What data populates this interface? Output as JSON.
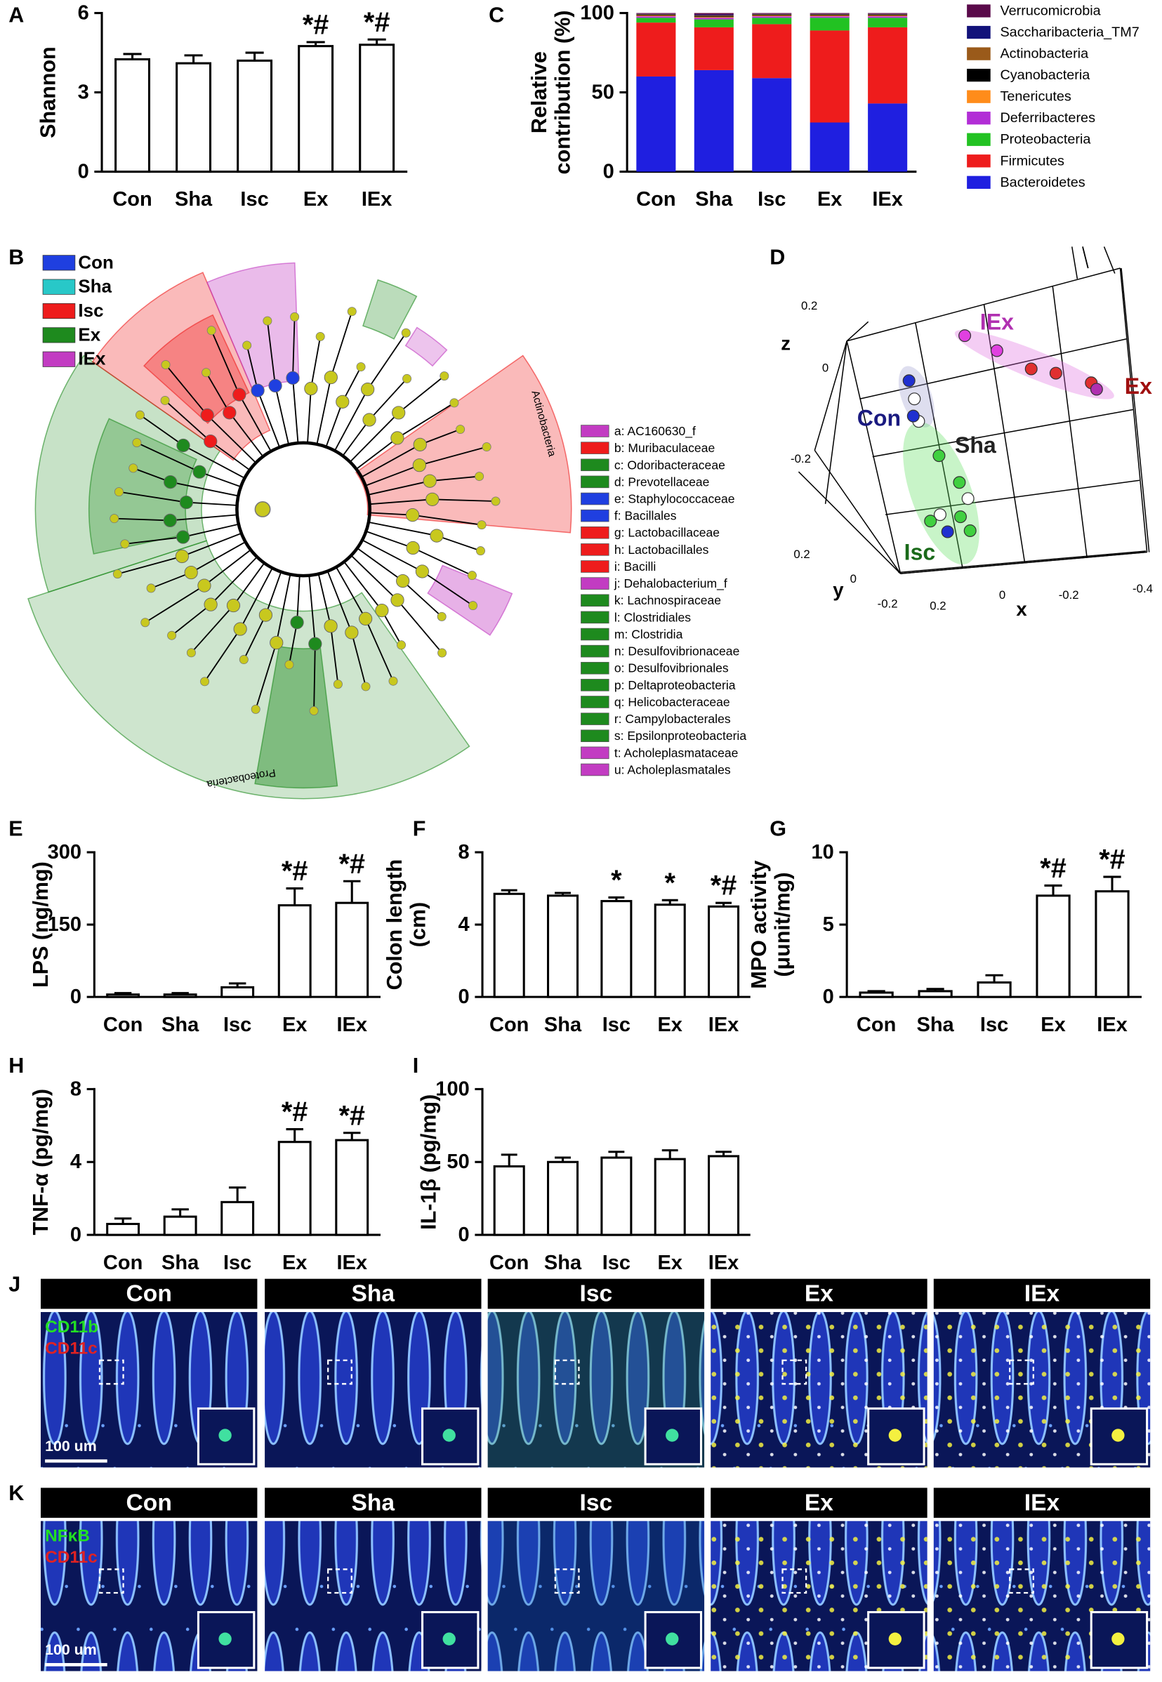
{
  "chart_data": [
    {
      "panel": "A",
      "type": "bar",
      "ylabel": [
        "Shannon"
      ],
      "categories": [
        "Con",
        "Sha",
        "Isc",
        "Ex",
        "IEx"
      ],
      "values": [
        4.25,
        4.1,
        4.2,
        4.75,
        4.8
      ],
      "errors": [
        0.2,
        0.3,
        0.3,
        0.15,
        0.2
      ],
      "ylim": [
        0,
        6
      ],
      "yticks": [
        0,
        3,
        6
      ],
      "color": "#ffffff",
      "annotations": [
        {
          "index": 3,
          "text": "*#"
        },
        {
          "index": 4,
          "text": "*#"
        }
      ]
    },
    {
      "panel": "C",
      "type": "stacked_bar",
      "ylabel": [
        "Relative",
        "contribution (%)"
      ],
      "categories": [
        "Con",
        "Sha",
        "Isc",
        "Ex",
        "IEx"
      ],
      "ylim": [
        0,
        100
      ],
      "yticks": [
        0,
        50,
        100
      ],
      "series": [
        {
          "name": "Bacteroidetes",
          "color": "#1f1fe0",
          "values": [
            60,
            64,
            59,
            31,
            43
          ]
        },
        {
          "name": "Firmicutes",
          "color": "#ee1c1c",
          "values": [
            34,
            27,
            34,
            58,
            48
          ]
        },
        {
          "name": "Proteobacteria",
          "color": "#22c222",
          "values": [
            3,
            5,
            4,
            8,
            6
          ]
        },
        {
          "name": "Deferribacteres",
          "color": "#b22ed6",
          "values": [
            1,
            1,
            1,
            1,
            1
          ]
        },
        {
          "name": "Tenericutes",
          "color": "#ff8c1a",
          "values": [
            0.5,
            0.5,
            0.5,
            0.5,
            0.5
          ]
        },
        {
          "name": "Cyanobacteria",
          "color": "#000000",
          "values": [
            0.5,
            0.5,
            0.5,
            0.5,
            0.5
          ]
        },
        {
          "name": "Actinobacteria",
          "color": "#9a5a1a",
          "values": [
            0.3,
            0.5,
            0.3,
            0.3,
            0.3
          ]
        },
        {
          "name": "Saccharibacteria_TM7",
          "color": "#12127a",
          "values": [
            0.2,
            0.5,
            0.2,
            0.2,
            0.2
          ]
        },
        {
          "name": "Verrucomicrobia",
          "color": "#5a0a4a",
          "values": [
            0.5,
            1,
            0.5,
            0.5,
            0.5
          ]
        }
      ]
    },
    {
      "panel": "E",
      "type": "bar",
      "ylabel": [
        "LPS (ng/mg)"
      ],
      "categories": [
        "Con",
        "Sha",
        "Isc",
        "Ex",
        "IEx"
      ],
      "values": [
        5,
        5,
        20,
        190,
        195
      ],
      "errors": [
        3,
        3,
        8,
        35,
        45
      ],
      "ylim": [
        0,
        300
      ],
      "yticks": [
        0,
        150,
        300
      ],
      "color": "#ffffff",
      "annotations": [
        {
          "index": 3,
          "text": "*#"
        },
        {
          "index": 4,
          "text": "*#"
        }
      ]
    },
    {
      "panel": "F",
      "type": "bar",
      "ylabel": [
        "Colon length",
        "(cm)"
      ],
      "categories": [
        "Con",
        "Sha",
        "Isc",
        "Ex",
        "IEx"
      ],
      "values": [
        5.7,
        5.6,
        5.3,
        5.1,
        5.0
      ],
      "errors": [
        0.2,
        0.15,
        0.2,
        0.25,
        0.2
      ],
      "ylim": [
        0,
        8
      ],
      "yticks": [
        0,
        4,
        8
      ],
      "color": "#ffffff",
      "annotations": [
        {
          "index": 2,
          "text": "*"
        },
        {
          "index": 3,
          "text": "*"
        },
        {
          "index": 4,
          "text": "*#"
        }
      ]
    },
    {
      "panel": "G",
      "type": "bar",
      "ylabel": [
        "MPO activity",
        "(μunit/mg)"
      ],
      "categories": [
        "Con",
        "Sha",
        "Isc",
        "Ex",
        "IEx"
      ],
      "values": [
        0.3,
        0.4,
        1.0,
        7.0,
        7.3
      ],
      "errors": [
        0.1,
        0.15,
        0.5,
        0.7,
        1.0
      ],
      "ylim": [
        0,
        10
      ],
      "yticks": [
        0,
        5,
        10
      ],
      "color": "#ffffff",
      "annotations": [
        {
          "index": 3,
          "text": "*#"
        },
        {
          "index": 4,
          "text": "*#"
        }
      ]
    },
    {
      "panel": "H",
      "type": "bar",
      "ylabel": [
        "TNF-α (pg/mg)"
      ],
      "categories": [
        "Con",
        "Sha",
        "Isc",
        "Ex",
        "IEx"
      ],
      "values": [
        0.6,
        1.0,
        1.8,
        5.1,
        5.2
      ],
      "errors": [
        0.3,
        0.4,
        0.8,
        0.7,
        0.4
      ],
      "ylim": [
        0,
        8
      ],
      "yticks": [
        0,
        4,
        8
      ],
      "color": "#ffffff",
      "annotations": [
        {
          "index": 3,
          "text": "*#"
        },
        {
          "index": 4,
          "text": "*#"
        }
      ]
    },
    {
      "panel": "I",
      "type": "bar",
      "ylabel": [
        "IL-1β (pg/mg)"
      ],
      "categories": [
        "Con",
        "Sha",
        "Isc",
        "Ex",
        "IEx"
      ],
      "values": [
        47,
        50,
        53,
        52,
        54
      ],
      "errors": [
        8,
        3,
        4,
        6,
        3
      ],
      "ylim": [
        0,
        100
      ],
      "yticks": [
        0,
        50,
        100
      ],
      "color": "#ffffff"
    }
  ],
  "cladogram": {
    "panel": "B",
    "groups": [
      {
        "name": "Con",
        "color": "#1f3fe0"
      },
      {
        "name": "Sha",
        "color": "#28c8c8"
      },
      {
        "name": "Isc",
        "color": "#ee1c1c"
      },
      {
        "name": "Ex",
        "color": "#1e8a1e"
      },
      {
        "name": "IEx",
        "color": "#c23cc2"
      }
    ],
    "clades": [
      "Actinobacteria",
      "Proteobacteria"
    ],
    "taxa": [
      {
        "label": "a: AC160630_f",
        "group": 4
      },
      {
        "label": "b: Muribaculaceae",
        "group": 2
      },
      {
        "label": "c: Odoribacteraceae",
        "group": 3
      },
      {
        "label": "d: Prevotellaceae",
        "group": 3
      },
      {
        "label": "e: Staphylococcaceae",
        "group": 0
      },
      {
        "label": "f: Bacillales",
        "group": 0
      },
      {
        "label": "g: Lactobacillaceae",
        "group": 2
      },
      {
        "label": "h: Lactobacillales",
        "group": 2
      },
      {
        "label": "i: Bacilli",
        "group": 2
      },
      {
        "label": "j: Dehalobacterium_f",
        "group": 4
      },
      {
        "label": "k: Lachnospiraceae",
        "group": 3
      },
      {
        "label": "l: Clostridiales",
        "group": 3
      },
      {
        "label": "m: Clostridia",
        "group": 3
      },
      {
        "label": "n: Desulfovibrionaceae",
        "group": 3
      },
      {
        "label": "o: Desulfovibrionales",
        "group": 3
      },
      {
        "label": "p: Deltaproteobacteria",
        "group": 3
      },
      {
        "label": "q: Helicobacteraceae",
        "group": 3
      },
      {
        "label": "r: Campylobacterales",
        "group": 3
      },
      {
        "label": "s: Epsilonproteobacteria",
        "group": 3
      },
      {
        "label": "t: Acholeplasmataceae",
        "group": 4
      },
      {
        "label": "u: Acholeplasmatales",
        "group": 4
      }
    ]
  },
  "pca": {
    "panel": "D",
    "axis_labels": [
      "x",
      "y",
      "z"
    ],
    "x_ticks": [
      0.2,
      0,
      -0.2,
      -0.4
    ],
    "y_ticks": [
      0.2,
      0,
      -0.2
    ],
    "z_ticks": [
      0.2,
      0,
      -0.2
    ],
    "groups": [
      {
        "name": "IEx",
        "color": "#b030b0"
      },
      {
        "name": "Ex",
        "color": "#a01010"
      },
      {
        "name": "Con",
        "color": "#1a1a80"
      },
      {
        "name": "Sha",
        "color": "#222222"
      },
      {
        "name": "Isc",
        "color": "#1a6a1a"
      }
    ]
  },
  "micrographs": [
    {
      "panel": "J",
      "stains": [
        {
          "name": "CD11b",
          "color": "#22e022"
        },
        {
          "name": "CD11c",
          "color": "#e02222"
        }
      ],
      "scale_bar": "100 um",
      "columns": [
        "Con",
        "Sha",
        "Isc",
        "Ex",
        "IEx"
      ]
    },
    {
      "panel": "K",
      "stains": [
        {
          "name": "NFκB",
          "color": "#22e022"
        },
        {
          "name": "CD11c",
          "color": "#e02222"
        }
      ],
      "scale_bar": "100 um",
      "columns": [
        "Con",
        "Sha",
        "Isc",
        "Ex",
        "IEx"
      ]
    }
  ]
}
